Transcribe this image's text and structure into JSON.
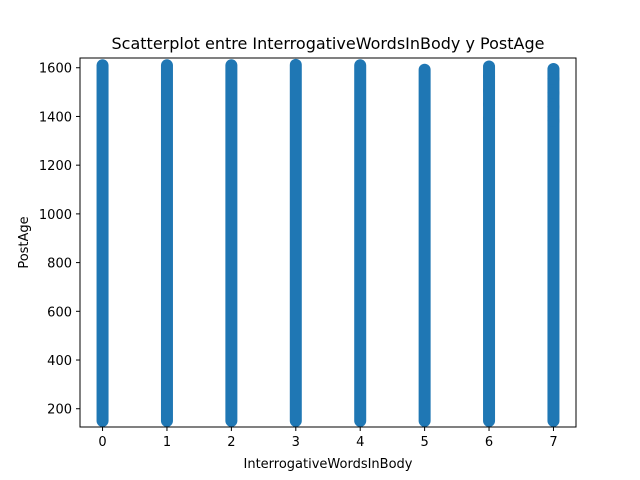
{
  "chart_data": {
    "type": "scatter",
    "title": "Scatterplot entre InterrogativeWordsInBody y PostAge",
    "xlabel": "InterrogativeWordsInBody",
    "ylabel": "PostAge",
    "xlim": [
      -0.35,
      7.35
    ],
    "ylim": [
      125,
      1640
    ],
    "x_ticks": [
      0,
      1,
      2,
      3,
      4,
      5,
      6,
      7
    ],
    "y_ticks": [
      200,
      400,
      600,
      800,
      1000,
      1200,
      1400,
      1600
    ],
    "grid": false,
    "legend": "none",
    "color": "#1f77b4",
    "series": [
      {
        "values": [
          {
            "x": 0,
            "ymin": 150,
            "ymax": 1610
          },
          {
            "x": 1,
            "ymin": 150,
            "ymax": 1610
          },
          {
            "x": 2,
            "ymin": 150,
            "ymax": 1610
          },
          {
            "x": 3,
            "ymin": 150,
            "ymax": 1612
          },
          {
            "x": 4,
            "ymin": 150,
            "ymax": 1610
          },
          {
            "x": 5,
            "ymin": 150,
            "ymax": 1592
          },
          {
            "x": 6,
            "ymin": 150,
            "ymax": 1605
          },
          {
            "x": 7,
            "ymin": 150,
            "ymax": 1595
          }
        ]
      }
    ]
  }
}
